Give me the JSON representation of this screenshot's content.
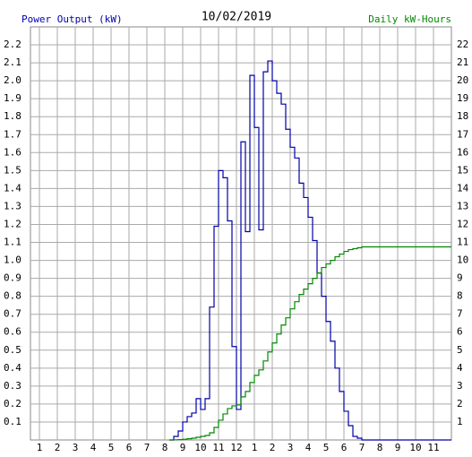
{
  "chart_data": {
    "type": "step",
    "title": "10/02/2019",
    "y_label": "Power Output (kW)",
    "y2_label": "Daily kW-Hours",
    "x": [
      8.25,
      8.5,
      8.75,
      9,
      9.25,
      9.5,
      9.75,
      10,
      10.25,
      10.5,
      10.75,
      11,
      11.25,
      11.5,
      11.75,
      12,
      12.25,
      12.5,
      12.75,
      13,
      13.25,
      13.5,
      13.75,
      14,
      14.25,
      14.5,
      14.75,
      15,
      15.25,
      15.5,
      15.75,
      16,
      16.25,
      16.5,
      16.75,
      17,
      17.25,
      17.5,
      17.75,
      18,
      18.25,
      18.5,
      18.75,
      19,
      20,
      21,
      22,
      23,
      24
    ],
    "series": [
      {
        "name": "Power Output (kW)",
        "color": "#0000aa",
        "axis": "y",
        "values": [
          0,
          0.02,
          0.05,
          0.1,
          0.13,
          0.15,
          0.23,
          0.17,
          0.23,
          0.74,
          1.19,
          1.5,
          1.46,
          1.22,
          0.52,
          0.17,
          1.66,
          1.16,
          2.03,
          1.74,
          1.17,
          2.05,
          2.11,
          2.0,
          1.93,
          1.87,
          1.73,
          1.63,
          1.57,
          1.43,
          1.35,
          1.24,
          1.11,
          0.93,
          0.8,
          0.66,
          0.55,
          0.4,
          0.27,
          0.16,
          0.08,
          0.02,
          0.01,
          0,
          0,
          0,
          0,
          0,
          0
        ]
      },
      {
        "name": "Daily kW-Hours",
        "color": "#008800",
        "axis": "y2",
        "values": [
          0,
          0.01,
          0.02,
          0.04,
          0.07,
          0.1,
          0.15,
          0.2,
          0.25,
          0.4,
          0.7,
          1.1,
          1.45,
          1.75,
          1.9,
          1.95,
          2.4,
          2.7,
          3.2,
          3.6,
          3.9,
          4.4,
          4.9,
          5.4,
          5.9,
          6.4,
          6.8,
          7.3,
          7.7,
          8.1,
          8.4,
          8.7,
          9.0,
          9.3,
          9.6,
          9.8,
          10.0,
          10.2,
          10.35,
          10.5,
          10.6,
          10.65,
          10.7,
          10.75,
          10.75,
          10.75,
          10.75,
          10.75,
          10.75
        ]
      }
    ],
    "xlim": [
      0.5,
      24
    ],
    "xticks": [
      1,
      2,
      3,
      4,
      5,
      6,
      7,
      8,
      9,
      10,
      11,
      12,
      {
        "value": 13,
        "label": "1"
      },
      {
        "value": 14,
        "label": "2"
      },
      {
        "value": 15,
        "label": "3"
      },
      {
        "value": 16,
        "label": "4"
      },
      {
        "value": 17,
        "label": "5"
      },
      {
        "value": 18,
        "label": "6"
      },
      {
        "value": 19,
        "label": "7"
      },
      {
        "value": 20,
        "label": "8"
      },
      {
        "value": 21,
        "label": "9"
      },
      {
        "value": 22,
        "label": "10"
      },
      {
        "value": 23,
        "label": "11"
      }
    ],
    "ylim": [
      0,
      2.3
    ],
    "yticks": [
      0.1,
      0.2,
      0.3,
      0.4,
      0.5,
      0.6,
      0.7,
      0.8,
      0.9,
      {
        "value": 1,
        "label": "1.0"
      },
      1.1,
      1.2,
      1.3,
      1.4,
      1.5,
      1.6,
      1.7,
      1.8,
      1.9,
      {
        "value": 2,
        "label": "2.0"
      },
      2.1,
      2.2
    ],
    "y2lim": [
      0,
      23
    ],
    "y2ticks": [
      1,
      2,
      3,
      4,
      5,
      6,
      7,
      8,
      9,
      10,
      11,
      12,
      13,
      14,
      15,
      16,
      17,
      18,
      19,
      20,
      21,
      22
    ],
    "grid": true
  }
}
